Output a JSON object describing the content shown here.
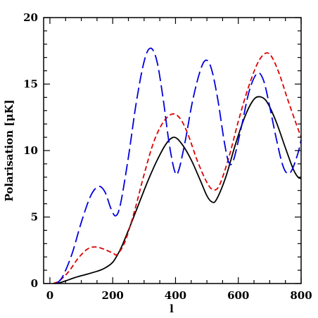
{
  "chart_data": {
    "type": "line",
    "title": "",
    "xlabel": "l",
    "ylabel": "Polarisation [μK]",
    "xlim": [
      -20,
      800
    ],
    "ylim": [
      0,
      20
    ],
    "xticks": [
      0,
      200,
      400,
      600,
      800
    ],
    "yticks": [
      0,
      5,
      10,
      15,
      20
    ],
    "grid": false,
    "legend": "none",
    "series": [
      {
        "color": "#000000",
        "style": "solid",
        "points": [
          [
            15,
            0
          ],
          [
            30,
            0.05
          ],
          [
            50,
            0.2
          ],
          [
            80,
            0.45
          ],
          [
            110,
            0.65
          ],
          [
            140,
            0.85
          ],
          [
            170,
            1.1
          ],
          [
            200,
            1.6
          ],
          [
            225,
            2.6
          ],
          [
            250,
            4.0
          ],
          [
            280,
            5.8
          ],
          [
            310,
            7.6
          ],
          [
            340,
            9.2
          ],
          [
            370,
            10.5
          ],
          [
            395,
            11.0
          ],
          [
            420,
            10.5
          ],
          [
            450,
            9.3
          ],
          [
            480,
            7.7
          ],
          [
            500,
            6.6
          ],
          [
            515,
            6.15
          ],
          [
            530,
            6.3
          ],
          [
            560,
            8.0
          ],
          [
            590,
            10.4
          ],
          [
            620,
            12.5
          ],
          [
            645,
            13.7
          ],
          [
            665,
            14.05
          ],
          [
            690,
            13.7
          ],
          [
            720,
            12.2
          ],
          [
            750,
            10.2
          ],
          [
            775,
            8.6
          ],
          [
            790,
            8.0
          ],
          [
            800,
            7.9
          ]
        ]
      },
      {
        "color": "#dd0000",
        "style": "short-dash",
        "points": [
          [
            10,
            0
          ],
          [
            30,
            0.2
          ],
          [
            60,
            0.9
          ],
          [
            90,
            1.9
          ],
          [
            120,
            2.6
          ],
          [
            145,
            2.75
          ],
          [
            170,
            2.6
          ],
          [
            200,
            2.3
          ],
          [
            215,
            2.2
          ],
          [
            240,
            3.2
          ],
          [
            270,
            5.5
          ],
          [
            300,
            8.2
          ],
          [
            330,
            10.6
          ],
          [
            360,
            12.1
          ],
          [
            390,
            12.75
          ],
          [
            415,
            12.4
          ],
          [
            440,
            11.2
          ],
          [
            470,
            9.2
          ],
          [
            500,
            7.6
          ],
          [
            520,
            7.05
          ],
          [
            540,
            7.4
          ],
          [
            570,
            9.5
          ],
          [
            600,
            12.2
          ],
          [
            630,
            14.6
          ],
          [
            660,
            16.5
          ],
          [
            685,
            17.3
          ],
          [
            705,
            17.1
          ],
          [
            730,
            15.8
          ],
          [
            755,
            14.0
          ],
          [
            780,
            12.3
          ],
          [
            800,
            11.0
          ]
        ]
      },
      {
        "color": "#0000dd",
        "style": "long-dash",
        "points": [
          [
            20,
            0
          ],
          [
            40,
            0.5
          ],
          [
            70,
            2.2
          ],
          [
            100,
            4.6
          ],
          [
            130,
            6.6
          ],
          [
            155,
            7.3
          ],
          [
            175,
            6.9
          ],
          [
            195,
            5.6
          ],
          [
            210,
            5.1
          ],
          [
            225,
            6.0
          ],
          [
            250,
            9.5
          ],
          [
            275,
            13.6
          ],
          [
            300,
            16.7
          ],
          [
            320,
            17.7
          ],
          [
            340,
            16.8
          ],
          [
            360,
            14.0
          ],
          [
            380,
            10.5
          ],
          [
            398,
            8.4
          ],
          [
            410,
            8.5
          ],
          [
            430,
            10.6
          ],
          [
            455,
            13.8
          ],
          [
            480,
            16.1
          ],
          [
            498,
            16.8
          ],
          [
            515,
            16.1
          ],
          [
            535,
            13.8
          ],
          [
            555,
            10.7
          ],
          [
            570,
            9.1
          ],
          [
            585,
            9.3
          ],
          [
            610,
            11.8
          ],
          [
            635,
            14.5
          ],
          [
            660,
            15.8
          ],
          [
            680,
            15.3
          ],
          [
            700,
            13.3
          ],
          [
            720,
            11.0
          ],
          [
            740,
            9.0
          ],
          [
            755,
            8.3
          ],
          [
            770,
            8.5
          ],
          [
            790,
            9.8
          ],
          [
            800,
            10.8
          ]
        ]
      }
    ]
  }
}
